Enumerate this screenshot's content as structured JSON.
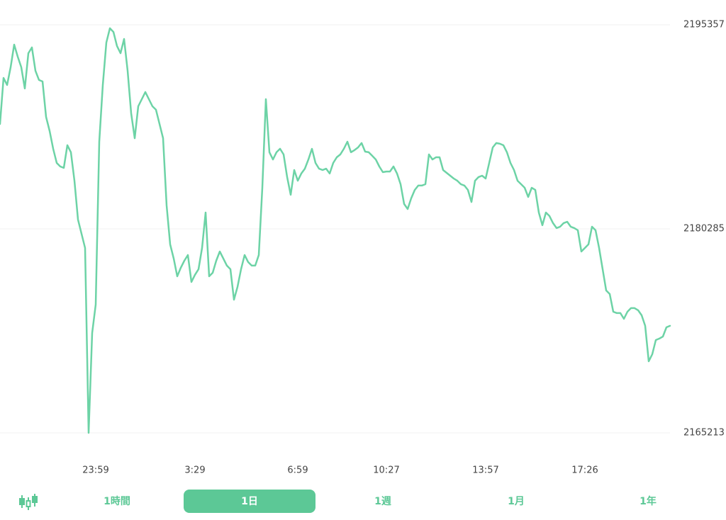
{
  "chart_data": {
    "type": "line",
    "color": "#6dd3a6",
    "grid": true,
    "ylim": [
      2165213,
      2195357
    ],
    "yticks": [
      2165213,
      2180285,
      2195357
    ],
    "categories": [
      null,
      null,
      null,
      null,
      null,
      null,
      null,
      null,
      null,
      null,
      null,
      null,
      null,
      null,
      null,
      null,
      null,
      null,
      null,
      null,
      null,
      null,
      null,
      null,
      null,
      null,
      null,
      "23:59",
      null,
      null,
      null,
      null,
      null,
      null,
      null,
      null,
      null,
      null,
      null,
      null,
      null,
      null,
      null,
      null,
      null,
      null,
      null,
      null,
      null,
      null,
      null,
      null,
      null,
      null,
      null,
      "3:29",
      null,
      null,
      null,
      null,
      null,
      null,
      null,
      null,
      null,
      null,
      null,
      null,
      null,
      null,
      null,
      null,
      null,
      null,
      null,
      null,
      null,
      null,
      null,
      null,
      null,
      null,
      null,
      null,
      "6:59",
      null,
      null,
      null,
      null,
      null,
      null,
      null,
      null,
      null,
      null,
      null,
      null,
      null,
      null,
      null,
      null,
      null,
      null,
      null,
      null,
      null,
      null,
      null,
      null,
      "10:27",
      null,
      null,
      null,
      null,
      null,
      null,
      null,
      null,
      null,
      null,
      null,
      null,
      null,
      null,
      null,
      null,
      null,
      null,
      null,
      null,
      null,
      null,
      null,
      null,
      null,
      null,
      null,
      "13:57",
      null,
      null,
      null,
      null,
      null,
      null,
      null,
      null,
      null,
      null,
      null,
      null,
      null,
      null,
      null,
      null,
      null,
      null,
      null,
      null,
      null,
      null,
      null,
      null,
      null,
      null,
      null,
      "17:26",
      null,
      null,
      null,
      null,
      null,
      null,
      null,
      null,
      null,
      null,
      null,
      null,
      null,
      null,
      null,
      null,
      null,
      null,
      null,
      null,
      null,
      null,
      null,
      null
    ],
    "values": [
      2188030,
      2191430,
      2190910,
      2192220,
      2193890,
      2193000,
      2192220,
      2190650,
      2193260,
      2193680,
      2191960,
      2191280,
      2191170,
      2188550,
      2187510,
      2186200,
      2185150,
      2184890,
      2184790,
      2186460,
      2185940,
      2183840,
      2180970,
      2179920,
      2178870,
      2165213,
      2172590,
      2174690,
      2186720,
      2190910,
      2194050,
      2195100,
      2194830,
      2193790,
      2193260,
      2194310,
      2191960,
      2188820,
      2186980,
      2189340,
      2189860,
      2190390,
      2189860,
      2189340,
      2189080,
      2188030,
      2186980,
      2182010,
      2179140,
      2178090,
      2176780,
      2177410,
      2177930,
      2178350,
      2176360,
      2176890,
      2177300,
      2178870,
      2181490,
      2176780,
      2177040,
      2177930,
      2178610,
      2178090,
      2177570,
      2177300,
      2175050,
      2176000,
      2177300,
      2178350,
      2177830,
      2177570,
      2177570,
      2178350,
      2183320,
      2189860,
      2185940,
      2185410,
      2185940,
      2186200,
      2185780,
      2184110,
      2182800,
      2184630,
      2183840,
      2184370,
      2184730,
      2185410,
      2186200,
      2185150,
      2184730,
      2184630,
      2184730,
      2184370,
      2185150,
      2185570,
      2185780,
      2186200,
      2186720,
      2185940,
      2186100,
      2186300,
      2186620,
      2185990,
      2185940,
      2185680,
      2185410,
      2184890,
      2184470,
      2184520,
      2184520,
      2184890,
      2184370,
      2183580,
      2182120,
      2181750,
      2182540,
      2183160,
      2183480,
      2183480,
      2183580,
      2185780,
      2185410,
      2185570,
      2185570,
      2184630,
      2184420,
      2184210,
      2184000,
      2183840,
      2183580,
      2183480,
      2183160,
      2182270,
      2183840,
      2184110,
      2184210,
      2184000,
      2185150,
      2186300,
      2186620,
      2186570,
      2186460,
      2185940,
      2185150,
      2184630,
      2183840,
      2183580,
      2183320,
      2182640,
      2183320,
      2183160,
      2181490,
      2180550,
      2181490,
      2181230,
      2180710,
      2180340,
      2180440,
      2180710,
      2180810,
      2180440,
      2180340,
      2180180,
      2178610,
      2178870,
      2179140,
      2180440,
      2180180,
      2178870,
      2177300,
      2175730,
      2175470,
      2174160,
      2174060,
      2174060,
      2173640,
      2174160,
      2174430,
      2174430,
      2174270,
      2173900,
      2173120,
      2170500,
      2171020,
      2172070,
      2172180,
      2172330,
      2173010,
      2173120
    ]
  },
  "tabs": [
    {
      "label": "1時間",
      "active": false
    },
    {
      "label": "1日",
      "active": true
    },
    {
      "label": "1週",
      "active": false
    },
    {
      "label": "1月",
      "active": false
    },
    {
      "label": "1年",
      "active": false
    }
  ]
}
